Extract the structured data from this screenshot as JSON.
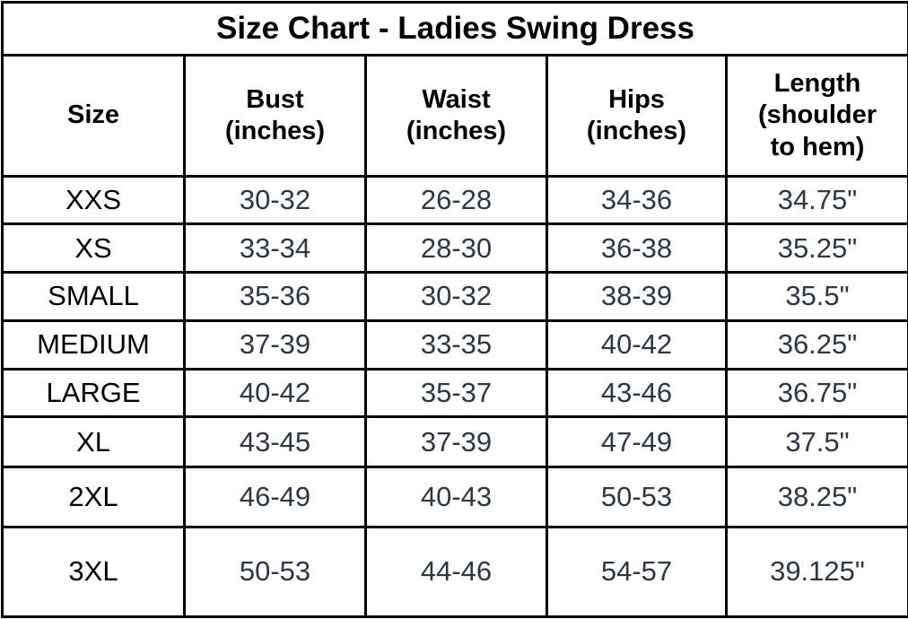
{
  "chart_data": {
    "type": "table",
    "title": "Size Chart - Ladies Swing Dress",
    "columns": [
      {
        "label": "Size",
        "lines": [
          "Size"
        ]
      },
      {
        "label": "Bust (inches)",
        "lines": [
          "Bust",
          "(inches)"
        ]
      },
      {
        "label": "Waist (inches)",
        "lines": [
          "Waist",
          "(inches)"
        ]
      },
      {
        "label": "Hips (inches)",
        "lines": [
          "Hips",
          "(inches)"
        ]
      },
      {
        "label": "Length (shoulder to hem)",
        "lines": [
          "Length",
          "(shoulder",
          "to hem)"
        ]
      }
    ],
    "rows": [
      [
        "XXS",
        "30-32",
        "26-28",
        "34-36",
        "34.75\""
      ],
      [
        "XS",
        "33-34",
        "28-30",
        "36-38",
        "35.25\""
      ],
      [
        "SMALL",
        "35-36",
        "30-32",
        "38-39",
        "35.5\""
      ],
      [
        "MEDIUM",
        "37-39",
        "33-35",
        "40-42",
        "36.25\""
      ],
      [
        "LARGE",
        "40-42",
        "35-37",
        "43-46",
        "36.75\""
      ],
      [
        "XL",
        "43-45",
        "37-39",
        "47-49",
        "37.5\""
      ],
      [
        "2XL",
        "46-49",
        "40-43",
        "50-53",
        "38.25\""
      ],
      [
        "3XL",
        "50-53",
        "44-46",
        "54-57",
        "39.125\""
      ]
    ]
  },
  "colors": {
    "border": "#000000",
    "background": "#ffffff",
    "label_text": "#000000",
    "measurement_text": "#2d3845"
  }
}
